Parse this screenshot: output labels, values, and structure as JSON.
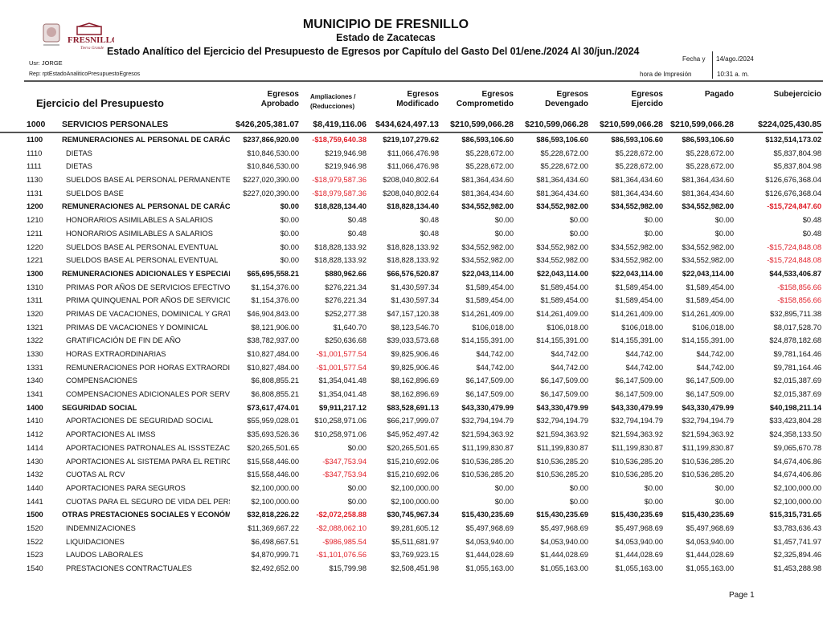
{
  "header": {
    "title": "MUNICIPIO DE FRESNILLO",
    "subtitle": "Estado de Zacatecas",
    "report_title": "Estado Analítico del Ejercicio del Presupuesto de Egresos por Capítulo del Gasto Del 01/ene./2024 Al 30/jun./2024",
    "user": "Usr: JORGE",
    "report_id": "Rep: rptEstadoAnaliticoPresupuestoEgresos",
    "date_label": "Fecha y",
    "date_value": "14/ago./2024",
    "time_label": "hora de Impresión",
    "time_value": "10:31 a. m.",
    "logo_text": "FRESNILLO",
    "logo_tagline": "Tierra Grande"
  },
  "table": {
    "first_header": "Ejercicio del Presupuesto",
    "columns": [
      [
        "Egresos",
        "Aprobado"
      ],
      [
        "Ampliaciones /",
        "(Reducciones)"
      ],
      [
        "Egresos",
        "Modificado"
      ],
      [
        "Egresos",
        "Comprometido"
      ],
      [
        "Egresos",
        "Devengado"
      ],
      [
        "Egresos",
        "Ejercido"
      ],
      [
        "",
        "Pagado"
      ],
      [
        "",
        "Subejercicio"
      ]
    ],
    "rows": [
      {
        "code": "1000",
        "name": "SERVICIOS PERSONALES",
        "bold": true,
        "values": [
          "$426,205,381.07",
          "$8,419,116.06",
          "$434,624,497.13",
          "$210,599,066.28",
          "$210,599,066.28",
          "$210,599,066.28",
          "$210,599,066.28",
          "$224,025,430.85"
        ]
      },
      {
        "code": "1100",
        "name": "REMUNERACIONES AL PERSONAL DE CARÁCT",
        "bold": true,
        "values": [
          "$237,866,920.00",
          "-$18,759,640.38",
          "$219,107,279.62",
          "$86,593,106.60",
          "$86,593,106.60",
          "$86,593,106.60",
          "$86,593,106.60",
          "$132,514,173.02"
        ]
      },
      {
        "code": "1110",
        "name": "DIETAS",
        "bold": false,
        "values": [
          "$10,846,530.00",
          "$219,946.98",
          "$11,066,476.98",
          "$5,228,672.00",
          "$5,228,672.00",
          "$5,228,672.00",
          "$5,228,672.00",
          "$5,837,804.98"
        ]
      },
      {
        "code": "1111",
        "name": "DIETAS",
        "bold": false,
        "values": [
          "$10,846,530.00",
          "$219,946.98",
          "$11,066,476.98",
          "$5,228,672.00",
          "$5,228,672.00",
          "$5,228,672.00",
          "$5,228,672.00",
          "$5,837,804.98"
        ]
      },
      {
        "code": "1130",
        "name": "SUELDOS BASE AL PERSONAL PERMANENTE",
        "bold": false,
        "values": [
          "$227,020,390.00",
          "-$18,979,587.36",
          "$208,040,802.64",
          "$81,364,434.60",
          "$81,364,434.60",
          "$81,364,434.60",
          "$81,364,434.60",
          "$126,676,368.04"
        ]
      },
      {
        "code": "1131",
        "name": "SUELDOS BASE",
        "bold": false,
        "values": [
          "$227,020,390.00",
          "-$18,979,587.36",
          "$208,040,802.64",
          "$81,364,434.60",
          "$81,364,434.60",
          "$81,364,434.60",
          "$81,364,434.60",
          "$126,676,368.04"
        ]
      },
      {
        "code": "1200",
        "name": "REMUNERACIONES AL PERSONAL DE CARÁCT",
        "bold": true,
        "values": [
          "$0.00",
          "$18,828,134.40",
          "$18,828,134.40",
          "$34,552,982.00",
          "$34,552,982.00",
          "$34,552,982.00",
          "$34,552,982.00",
          "-$15,724,847.60"
        ]
      },
      {
        "code": "1210",
        "name": "HONORARIOS ASIMILABLES A SALARIOS",
        "bold": false,
        "values": [
          "$0.00",
          "$0.48",
          "$0.48",
          "$0.00",
          "$0.00",
          "$0.00",
          "$0.00",
          "$0.48"
        ]
      },
      {
        "code": "1211",
        "name": "HONORARIOS ASIMILABLES A SALARIOS",
        "bold": false,
        "values": [
          "$0.00",
          "$0.48",
          "$0.48",
          "$0.00",
          "$0.00",
          "$0.00",
          "$0.00",
          "$0.48"
        ]
      },
      {
        "code": "1220",
        "name": "SUELDOS BASE AL PERSONAL EVENTUAL",
        "bold": false,
        "values": [
          "$0.00",
          "$18,828,133.92",
          "$18,828,133.92",
          "$34,552,982.00",
          "$34,552,982.00",
          "$34,552,982.00",
          "$34,552,982.00",
          "-$15,724,848.08"
        ]
      },
      {
        "code": "1221",
        "name": "SUELDOS BASE AL PERSONAL EVENTUAL",
        "bold": false,
        "values": [
          "$0.00",
          "$18,828,133.92",
          "$18,828,133.92",
          "$34,552,982.00",
          "$34,552,982.00",
          "$34,552,982.00",
          "$34,552,982.00",
          "-$15,724,848.08"
        ]
      },
      {
        "code": "1300",
        "name": "REMUNERACIONES ADICIONALES Y ESPECIAL",
        "bold": true,
        "values": [
          "$65,695,558.21",
          "$880,962.66",
          "$66,576,520.87",
          "$22,043,114.00",
          "$22,043,114.00",
          "$22,043,114.00",
          "$22,043,114.00",
          "$44,533,406.87"
        ]
      },
      {
        "code": "1310",
        "name": "PRIMAS POR AÑOS DE SERVICIOS EFECTIVOS",
        "bold": false,
        "values": [
          "$1,154,376.00",
          "$276,221.34",
          "$1,430,597.34",
          "$1,589,454.00",
          "$1,589,454.00",
          "$1,589,454.00",
          "$1,589,454.00",
          "-$158,856.66"
        ]
      },
      {
        "code": "1311",
        "name": "PRIMA QUINQUENAL POR AÑOS DE SERVICIO",
        "bold": false,
        "values": [
          "$1,154,376.00",
          "$276,221.34",
          "$1,430,597.34",
          "$1,589,454.00",
          "$1,589,454.00",
          "$1,589,454.00",
          "$1,589,454.00",
          "-$158,856.66"
        ]
      },
      {
        "code": "1320",
        "name": "PRIMAS DE VACACIONES, DOMINICAL Y GRAT",
        "bold": false,
        "values": [
          "$46,904,843.00",
          "$252,277.38",
          "$47,157,120.38",
          "$14,261,409.00",
          "$14,261,409.00",
          "$14,261,409.00",
          "$14,261,409.00",
          "$32,895,711.38"
        ]
      },
      {
        "code": "1321",
        "name": "PRIMAS DE VACACIONES Y DOMINICAL",
        "bold": false,
        "values": [
          "$8,121,906.00",
          "$1,640.70",
          "$8,123,546.70",
          "$106,018.00",
          "$106,018.00",
          "$106,018.00",
          "$106,018.00",
          "$8,017,528.70"
        ]
      },
      {
        "code": "1322",
        "name": "GRATIFICACIÓN DE FIN DE AÑO",
        "bold": false,
        "values": [
          "$38,782,937.00",
          "$250,636.68",
          "$39,033,573.68",
          "$14,155,391.00",
          "$14,155,391.00",
          "$14,155,391.00",
          "$14,155,391.00",
          "$24,878,182.68"
        ]
      },
      {
        "code": "1330",
        "name": "HORAS EXTRAORDINARIAS",
        "bold": false,
        "values": [
          "$10,827,484.00",
          "-$1,001,577.54",
          "$9,825,906.46",
          "$44,742.00",
          "$44,742.00",
          "$44,742.00",
          "$44,742.00",
          "$9,781,164.46"
        ]
      },
      {
        "code": "1331",
        "name": "REMUNERACIONES POR  HORAS EXTRAORDII",
        "bold": false,
        "values": [
          "$10,827,484.00",
          "-$1,001,577.54",
          "$9,825,906.46",
          "$44,742.00",
          "$44,742.00",
          "$44,742.00",
          "$44,742.00",
          "$9,781,164.46"
        ]
      },
      {
        "code": "1340",
        "name": "COMPENSACIONES",
        "bold": false,
        "values": [
          "$6,808,855.21",
          "$1,354,041.48",
          "$8,162,896.69",
          "$6,147,509.00",
          "$6,147,509.00",
          "$6,147,509.00",
          "$6,147,509.00",
          "$2,015,387.69"
        ]
      },
      {
        "code": "1341",
        "name": "COMPENSACIONES ADICIONALES POR SERVI",
        "bold": false,
        "values": [
          "$6,808,855.21",
          "$1,354,041.48",
          "$8,162,896.69",
          "$6,147,509.00",
          "$6,147,509.00",
          "$6,147,509.00",
          "$6,147,509.00",
          "$2,015,387.69"
        ]
      },
      {
        "code": "1400",
        "name": "SEGURIDAD SOCIAL",
        "bold": true,
        "values": [
          "$73,617,474.01",
          "$9,911,217.12",
          "$83,528,691.13",
          "$43,330,479.99",
          "$43,330,479.99",
          "$43,330,479.99",
          "$43,330,479.99",
          "$40,198,211.14"
        ]
      },
      {
        "code": "1410",
        "name": "APORTACIONES DE SEGURIDAD SOCIAL",
        "bold": false,
        "values": [
          "$55,959,028.01",
          "$10,258,971.06",
          "$66,217,999.07",
          "$32,794,194.79",
          "$32,794,194.79",
          "$32,794,194.79",
          "$32,794,194.79",
          "$33,423,804.28"
        ]
      },
      {
        "code": "1412",
        "name": "APORTACIONES AL IMSS",
        "bold": false,
        "values": [
          "$35,693,526.36",
          "$10,258,971.06",
          "$45,952,497.42",
          "$21,594,363.92",
          "$21,594,363.92",
          "$21,594,363.92",
          "$21,594,363.92",
          "$24,358,133.50"
        ]
      },
      {
        "code": "1414",
        "name": "APORTACIONES  PATRONALES AL ISSSTEZAC",
        "bold": false,
        "values": [
          "$20,265,501.65",
          "$0.00",
          "$20,265,501.65",
          "$11,199,830.87",
          "$11,199,830.87",
          "$11,199,830.87",
          "$11,199,830.87",
          "$9,065,670.78"
        ]
      },
      {
        "code": "1430",
        "name": "APORTACIONES AL SISTEMA PARA EL RETIRO",
        "bold": false,
        "values": [
          "$15,558,446.00",
          "-$347,753.94",
          "$15,210,692.06",
          "$10,536,285.20",
          "$10,536,285.20",
          "$10,536,285.20",
          "$10,536,285.20",
          "$4,674,406.86"
        ]
      },
      {
        "code": "1432",
        "name": "CUOTAS AL RCV",
        "bold": false,
        "values": [
          "$15,558,446.00",
          "-$347,753.94",
          "$15,210,692.06",
          "$10,536,285.20",
          "$10,536,285.20",
          "$10,536,285.20",
          "$10,536,285.20",
          "$4,674,406.86"
        ]
      },
      {
        "code": "1440",
        "name": "APORTACIONES PARA SEGUROS",
        "bold": false,
        "values": [
          "$2,100,000.00",
          "$0.00",
          "$2,100,000.00",
          "$0.00",
          "$0.00",
          "$0.00",
          "$0.00",
          "$2,100,000.00"
        ]
      },
      {
        "code": "1441",
        "name": "CUOTAS PARA EL SEGURO DE VIDA DEL PERS",
        "bold": false,
        "values": [
          "$2,100,000.00",
          "$0.00",
          "$2,100,000.00",
          "$0.00",
          "$0.00",
          "$0.00",
          "$0.00",
          "$2,100,000.00"
        ]
      },
      {
        "code": "1500",
        "name": "OTRAS PRESTACIONES SOCIALES Y ECONÓMI",
        "bold": true,
        "values": [
          "$32,818,226.22",
          "-$2,072,258.88",
          "$30,745,967.34",
          "$15,430,235.69",
          "$15,430,235.69",
          "$15,430,235.69",
          "$15,430,235.69",
          "$15,315,731.65"
        ]
      },
      {
        "code": "1520",
        "name": "INDEMNIZACIONES",
        "bold": false,
        "values": [
          "$11,369,667.22",
          "-$2,088,062.10",
          "$9,281,605.12",
          "$5,497,968.69",
          "$5,497,968.69",
          "$5,497,968.69",
          "$5,497,968.69",
          "$3,783,636.43"
        ]
      },
      {
        "code": "1522",
        "name": "LIQUIDACIONES",
        "bold": false,
        "values": [
          "$6,498,667.51",
          "-$986,985.54",
          "$5,511,681.97",
          "$4,053,940.00",
          "$4,053,940.00",
          "$4,053,940.00",
          "$4,053,940.00",
          "$1,457,741.97"
        ]
      },
      {
        "code": "1523",
        "name": "LAUDOS LABORALES",
        "bold": false,
        "values": [
          "$4,870,999.71",
          "-$1,101,076.56",
          "$3,769,923.15",
          "$1,444,028.69",
          "$1,444,028.69",
          "$1,444,028.69",
          "$1,444,028.69",
          "$2,325,894.46"
        ]
      },
      {
        "code": "1540",
        "name": "PRESTACIONES CONTRACTUALES",
        "bold": false,
        "values": [
          "$2,492,652.00",
          "$15,799.98",
          "$2,508,451.98",
          "$1,055,163.00",
          "$1,055,163.00",
          "$1,055,163.00",
          "$1,055,163.00",
          "$1,453,288.98"
        ]
      }
    ]
  },
  "footer": {
    "page": "Page 1"
  },
  "colors": {
    "negative": "#e0202a",
    "text": "#111111"
  }
}
